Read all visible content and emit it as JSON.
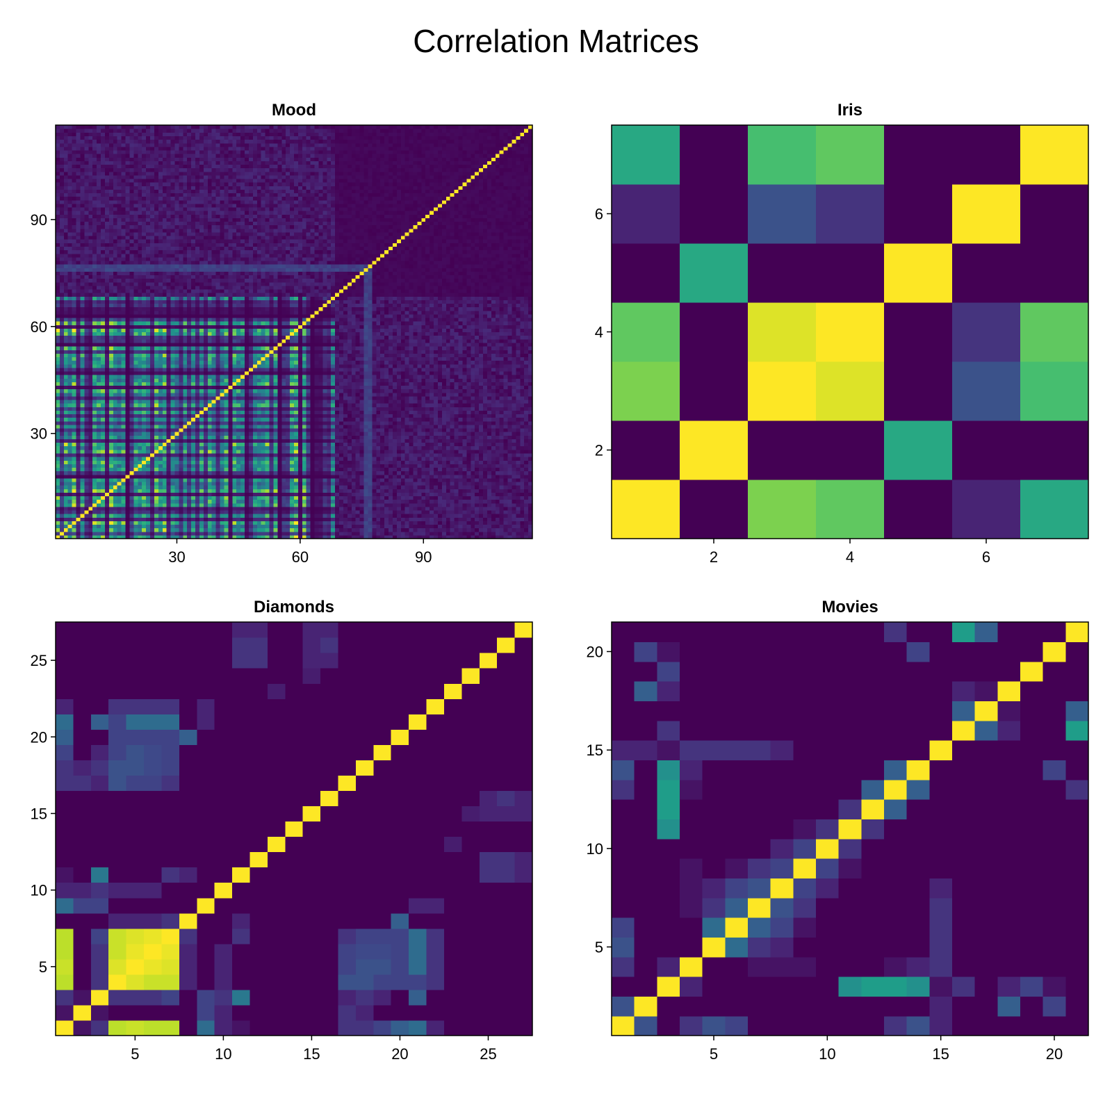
{
  "title": "Correlation Matrices",
  "colors": {
    "colormap": "viridis",
    "low": "#440154",
    "high": "#fde725",
    "frame": "#000000"
  },
  "chart_data": [
    {
      "type": "heatmap",
      "title": "Mood",
      "size": 116,
      "pattern": "mood",
      "x_ticks": [
        30,
        60,
        90
      ],
      "y_ticks": [
        30,
        60,
        90
      ],
      "xlim": [
        0.5,
        116.5
      ],
      "ylim": [
        0.5,
        116.5
      ],
      "diagonal": 1.0,
      "colormap": "viridis"
    },
    {
      "type": "heatmap",
      "title": "Iris",
      "size": 7,
      "x_ticks": [
        2,
        4,
        6
      ],
      "y_ticks": [
        2,
        4,
        6
      ],
      "xlim": [
        0.5,
        7.5
      ],
      "ylim": [
        0.5,
        7.5
      ],
      "colormap": "viridis",
      "matrix_rows_bottom_to_top": [
        [
          1.0,
          0.0,
          0.8,
          0.75,
          0.0,
          0.1,
          0.6
        ],
        [
          0.0,
          1.0,
          0.0,
          0.0,
          0.6,
          0.0,
          0.0
        ],
        [
          0.8,
          0.0,
          1.0,
          0.95,
          0.0,
          0.25,
          0.7
        ],
        [
          0.75,
          0.0,
          0.95,
          1.0,
          0.0,
          0.15,
          0.75
        ],
        [
          0.0,
          0.6,
          0.0,
          0.0,
          1.0,
          0.0,
          0.0
        ],
        [
          0.1,
          0.0,
          0.25,
          0.15,
          0.0,
          1.0,
          0.0
        ],
        [
          0.6,
          0.0,
          0.7,
          0.75,
          0.0,
          0.0,
          1.0
        ]
      ]
    },
    {
      "type": "heatmap",
      "title": "Diamonds",
      "size": 27,
      "x_ticks": [
        5,
        10,
        15,
        20,
        25
      ],
      "y_ticks": [
        5,
        10,
        15,
        20,
        25
      ],
      "xlim": [
        0.5,
        27.5
      ],
      "ylim": [
        0.5,
        27.5
      ],
      "diagonal": 1.0,
      "colormap": "viridis",
      "cells": [
        [
          1,
          4,
          0.9
        ],
        [
          1,
          5,
          0.92
        ],
        [
          1,
          6,
          0.9
        ],
        [
          1,
          7,
          0.9
        ],
        [
          4,
          5,
          0.95
        ],
        [
          4,
          6,
          0.92
        ],
        [
          4,
          7,
          0.92
        ],
        [
          5,
          6,
          0.97
        ],
        [
          5,
          7,
          0.95
        ],
        [
          6,
          7,
          0.97
        ],
        [
          1,
          2,
          0.05
        ],
        [
          1,
          3,
          0.15
        ],
        [
          2,
          3,
          0.05
        ],
        [
          3,
          4,
          0.15
        ],
        [
          3,
          5,
          0.15
        ],
        [
          3,
          6,
          0.15
        ],
        [
          3,
          7,
          0.2
        ],
        [
          1,
          9,
          0.35
        ],
        [
          1,
          10,
          0.1
        ],
        [
          1,
          11,
          0.05
        ],
        [
          3,
          11,
          0.4
        ],
        [
          2,
          9,
          0.2
        ],
        [
          2,
          10,
          0.1
        ],
        [
          3,
          9,
          0.2
        ],
        [
          3,
          10,
          0.15
        ],
        [
          1,
          17,
          0.15
        ],
        [
          1,
          18,
          0.15
        ],
        [
          1,
          19,
          0.2
        ],
        [
          1,
          20,
          0.3
        ],
        [
          1,
          21,
          0.3
        ],
        [
          1,
          22,
          0.1
        ],
        [
          4,
          17,
          0.25
        ],
        [
          4,
          18,
          0.25
        ],
        [
          4,
          19,
          0.2
        ],
        [
          4,
          20,
          0.2
        ],
        [
          4,
          21,
          0.2
        ],
        [
          4,
          22,
          0.15
        ],
        [
          5,
          17,
          0.28
        ],
        [
          5,
          18,
          0.28
        ],
        [
          5,
          19,
          0.25
        ],
        [
          5,
          20,
          0.25
        ],
        [
          5,
          21,
          0.25
        ],
        [
          5,
          22,
          0.15
        ],
        [
          6,
          17,
          0.25
        ],
        [
          6,
          18,
          0.25
        ],
        [
          6,
          19,
          0.2
        ],
        [
          6,
          20,
          0.2
        ],
        [
          6,
          21,
          0.2
        ],
        [
          6,
          22,
          0.1
        ],
        [
          7,
          17,
          0.25
        ],
        [
          7,
          18,
          0.2
        ],
        [
          7,
          19,
          0.2
        ],
        [
          7,
          20,
          0.2
        ],
        [
          7,
          21,
          0.2
        ],
        [
          7,
          22,
          0.1
        ],
        [
          2,
          17,
          0.15
        ],
        [
          2,
          18,
          0.1
        ],
        [
          3,
          17,
          0.1
        ],
        [
          4,
          8,
          0.1
        ],
        [
          5,
          8,
          0.1
        ],
        [
          6,
          8,
          0.1
        ],
        [
          7,
          8,
          0.15
        ],
        [
          4,
          10,
          0.1
        ],
        [
          5,
          10,
          0.1
        ],
        [
          6,
          10,
          0.1
        ],
        [
          7,
          11,
          0.15
        ],
        [
          8,
          11,
          0.1
        ],
        [
          17,
          5,
          0.2
        ],
        [
          18,
          5,
          0.25
        ],
        [
          19,
          5,
          0.25
        ],
        [
          20,
          5,
          0.2
        ],
        [
          21,
          5,
          0.35
        ],
        [
          22,
          5,
          0.15
        ],
        [
          17,
          6,
          0.2
        ],
        [
          18,
          6,
          0.22
        ],
        [
          19,
          6,
          0.22
        ],
        [
          20,
          6,
          0.2
        ],
        [
          21,
          6,
          0.35
        ],
        [
          22,
          6,
          0.15
        ],
        [
          17,
          7,
          0.15
        ],
        [
          18,
          7,
          0.2
        ],
        [
          19,
          7,
          0.2
        ],
        [
          20,
          8,
          0.3
        ],
        [
          21,
          7,
          0.35
        ],
        [
          22,
          7,
          0.15
        ],
        [
          17,
          3,
          0.1
        ],
        [
          18,
          3,
          0.15
        ],
        [
          19,
          3,
          0.1
        ],
        [
          21,
          3,
          0.3
        ],
        [
          21,
          1,
          0.35
        ],
        [
          22,
          9,
          0.1
        ],
        [
          21,
          9,
          0.1
        ],
        [
          12,
          25,
          0.15
        ],
        [
          12,
          26,
          0.15
        ],
        [
          12,
          27,
          0.1
        ],
        [
          16,
          26,
          0.15
        ],
        [
          16,
          27,
          0.1
        ],
        [
          16,
          25,
          0.1
        ],
        [
          25,
          11,
          0.15
        ],
        [
          26,
          11,
          0.15
        ],
        [
          27,
          11,
          0.1
        ],
        [
          25,
          15,
          0.1
        ],
        [
          26,
          15,
          0.1
        ],
        [
          27,
          15,
          0.1
        ],
        [
          24,
          15,
          0.08
        ],
        [
          23,
          13,
          0.08
        ]
      ]
    },
    {
      "type": "heatmap",
      "title": "Movies",
      "size": 21,
      "x_ticks": [
        5,
        10,
        15,
        20
      ],
      "y_ticks": [
        5,
        10,
        15,
        20
      ],
      "xlim": [
        0.5,
        21.5
      ],
      "ylim": [
        0.5,
        21.5
      ],
      "diagonal": 1.0,
      "colormap": "viridis",
      "cells": [
        [
          1,
          2,
          0.25
        ],
        [
          2,
          3,
          0.0
        ],
        [
          3,
          4,
          0.1
        ],
        [
          4,
          5,
          0.0
        ],
        [
          5,
          6,
          0.35
        ],
        [
          6,
          7,
          0.3
        ],
        [
          7,
          8,
          0.25
        ],
        [
          8,
          9,
          0.2
        ],
        [
          9,
          10,
          0.2
        ],
        [
          10,
          11,
          0.15
        ],
        [
          11,
          12,
          0.15
        ],
        [
          12,
          13,
          0.3
        ],
        [
          13,
          14,
          0.3
        ],
        [
          14,
          15,
          0.0
        ],
        [
          15,
          16,
          0.0
        ],
        [
          16,
          17,
          0.3
        ],
        [
          17,
          18,
          0.05
        ],
        [
          18,
          19,
          0.0
        ],
        [
          19,
          20,
          0.0
        ],
        [
          20,
          21,
          0.0
        ],
        [
          5,
          7,
          0.15
        ],
        [
          5,
          8,
          0.1
        ],
        [
          6,
          8,
          0.2
        ],
        [
          7,
          9,
          0.15
        ],
        [
          8,
          10,
          0.1
        ],
        [
          9,
          11,
          0.05
        ],
        [
          6,
          9,
          0.05
        ],
        [
          3,
          11,
          0.5
        ],
        [
          3,
          12,
          0.55
        ],
        [
          3,
          13,
          0.5
        ],
        [
          3,
          14,
          0.4
        ],
        [
          12,
          3,
          0.55
        ],
        [
          13,
          3,
          0.55
        ],
        [
          14,
          3,
          0.5
        ],
        [
          3,
          18,
          0.1
        ],
        [
          3,
          19,
          0.2
        ],
        [
          1,
          5,
          0.25
        ],
        [
          1,
          6,
          0.2
        ],
        [
          1,
          4,
          0.15
        ],
        [
          16,
          21,
          0.55
        ],
        [
          17,
          21,
          0.3
        ],
        [
          16,
          18,
          0.1
        ],
        [
          2,
          18,
          0.3
        ],
        [
          2,
          20,
          0.2
        ],
        [
          2,
          15,
          0.15
        ],
        [
          15,
          1,
          0.1
        ],
        [
          15,
          2,
          0.1
        ],
        [
          15,
          3,
          0.05
        ],
        [
          15,
          4,
          0.15
        ],
        [
          15,
          5,
          0.15
        ],
        [
          15,
          6,
          0.15
        ],
        [
          15,
          7,
          0.15
        ],
        [
          15,
          8,
          0.1
        ],
        [
          14,
          1,
          0.25
        ],
        [
          13,
          1,
          0.15
        ],
        [
          14,
          20,
          0.2
        ],
        [
          13,
          21,
          0.15
        ],
        [
          3,
          16,
          0.15
        ],
        [
          3,
          20,
          0.05
        ],
        [
          4,
          13,
          0.05
        ],
        [
          4,
          14,
          0.1
        ],
        [
          7,
          4,
          0.05
        ],
        [
          8,
          4,
          0.05
        ],
        [
          9,
          4,
          0.05
        ]
      ]
    }
  ]
}
